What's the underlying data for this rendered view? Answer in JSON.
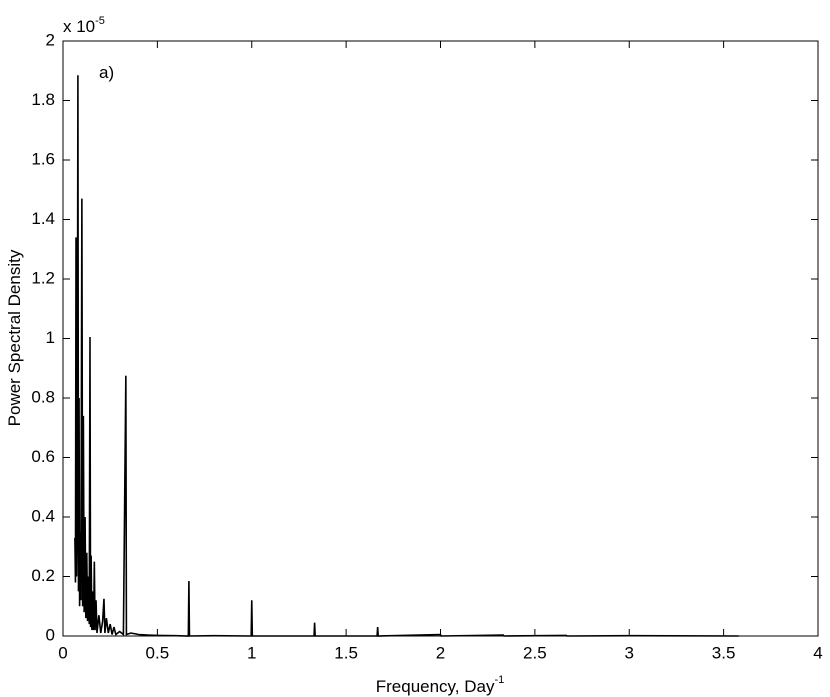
{
  "chart_data": {
    "type": "line",
    "xlabel": "Frequency, Day",
    "xlabel_superscript": "-1",
    "ylabel": "Power Spectral Density",
    "y_multiplier": "x 10",
    "y_multiplier_exponent": "-5",
    "annotation": "a)",
    "xlim": [
      0,
      4
    ],
    "xticks": [
      0,
      0.5,
      1,
      1.5,
      2,
      2.5,
      3,
      3.5,
      4
    ],
    "ylim": [
      0,
      2
    ],
    "yticks": [
      0,
      0.2,
      0.4,
      0.6,
      0.8,
      1,
      1.2,
      1.4,
      1.6,
      1.8,
      2
    ],
    "grid": false,
    "series": [
      {
        "color": "#000000",
        "x": [
          0.063,
          0.066,
          0.069,
          0.072,
          0.075,
          0.079,
          0.082,
          0.085,
          0.088,
          0.091,
          0.095,
          0.1,
          0.104,
          0.108,
          0.112,
          0.117,
          0.121,
          0.126,
          0.13,
          0.135,
          0.139,
          0.143,
          0.146,
          0.149,
          0.153,
          0.158,
          0.162,
          0.166,
          0.17,
          0.175,
          0.18,
          0.19,
          0.2,
          0.21,
          0.217,
          0.222,
          0.23,
          0.24,
          0.25,
          0.26,
          0.27,
          0.28,
          0.3,
          0.32,
          0.333,
          0.336,
          0.36,
          0.4,
          0.45,
          0.5,
          0.6,
          0.664,
          0.667,
          0.67,
          0.8,
          0.997,
          1.0,
          1.003,
          1.33,
          1.333,
          1.336,
          1.664,
          1.667,
          1.67,
          2.0,
          2.003,
          2.333,
          2.336,
          2.667,
          2.67,
          3.0,
          3.58
        ],
        "values": [
          0.33,
          0.18,
          1.34,
          0.2,
          0.4,
          1.885,
          0.15,
          0.8,
          0.1,
          0.35,
          0.12,
          1.47,
          0.1,
          0.74,
          0.08,
          0.4,
          0.06,
          0.28,
          0.05,
          0.2,
          0.04,
          1.005,
          0.03,
          0.27,
          0.02,
          0.15,
          0.02,
          0.25,
          0.02,
          0.12,
          0.01,
          0.07,
          0.01,
          0.05,
          0.125,
          0.01,
          0.06,
          0.01,
          0.04,
          0.005,
          0.03,
          0.005,
          0.015,
          0.005,
          0.875,
          0.005,
          0.01,
          0.005,
          0.003,
          0.002,
          0.001,
          0,
          0.185,
          0,
          0.001,
          0,
          0.12,
          0,
          0,
          0.045,
          0,
          0,
          0.03,
          0,
          0.005,
          0,
          0.003,
          0,
          0.002,
          0,
          0.001,
          0
        ]
      }
    ]
  }
}
